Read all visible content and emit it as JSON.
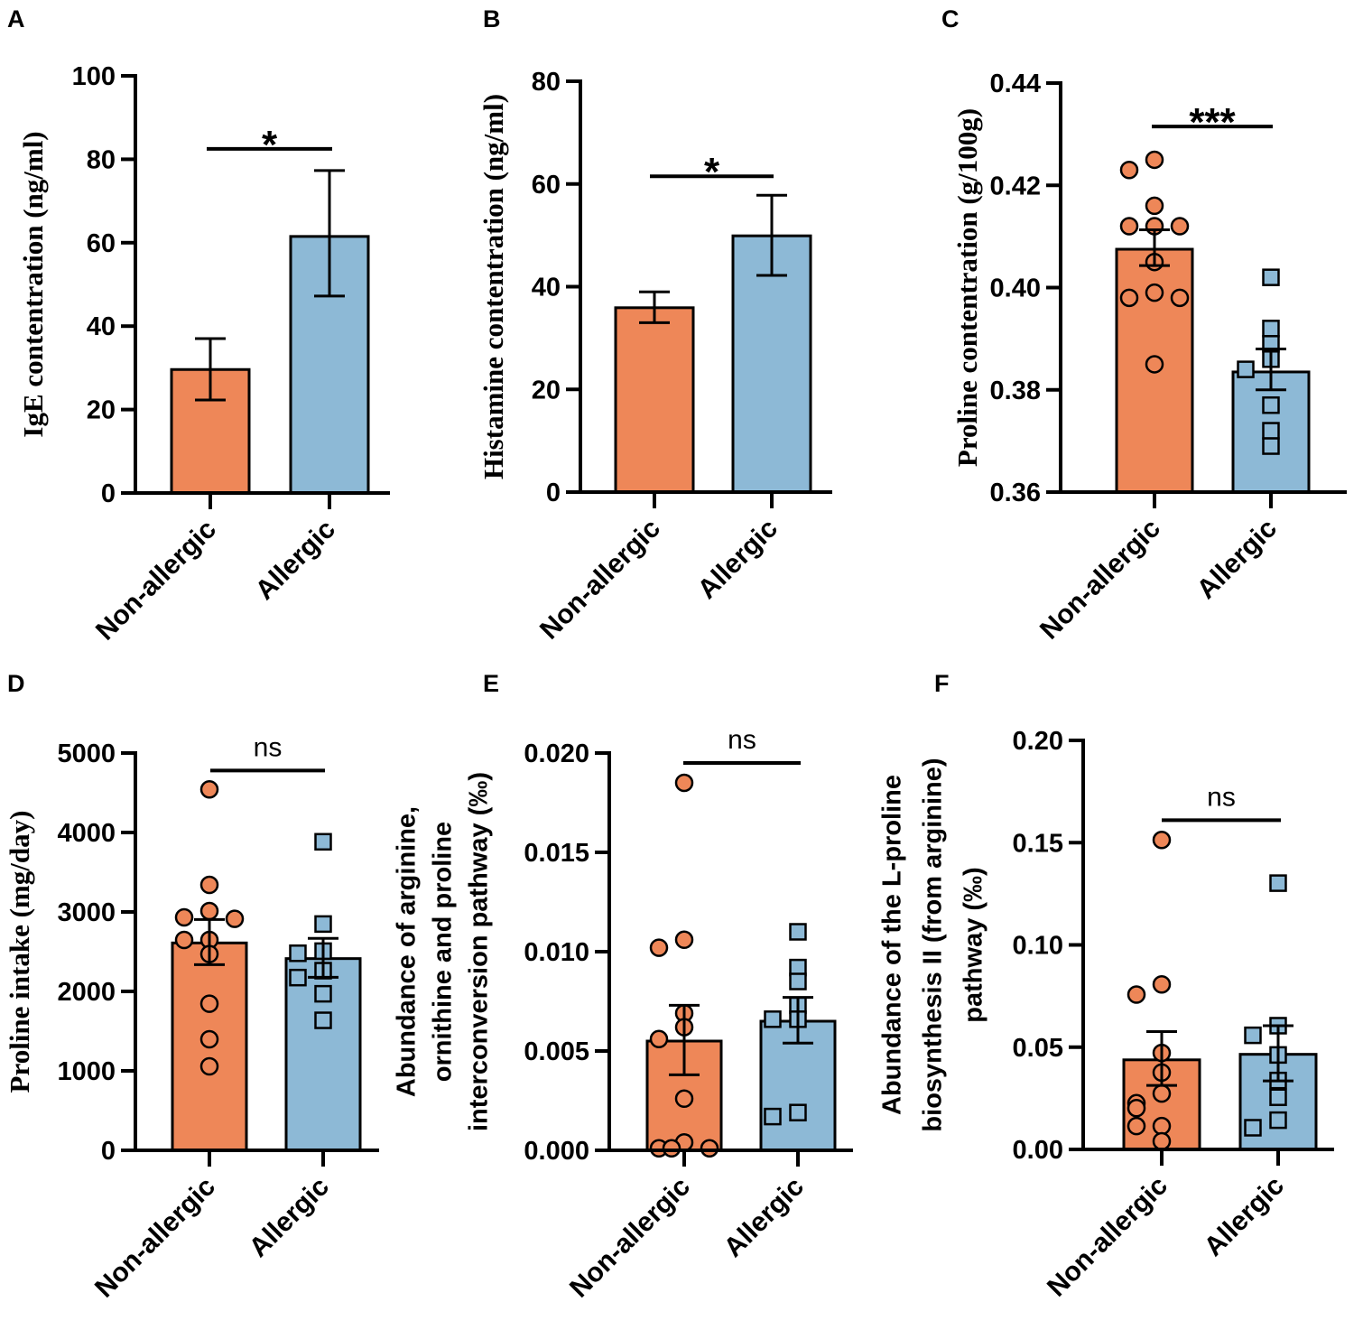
{
  "colors": {
    "non_allergic": "#EE8758",
    "allergic": "#8DB9D6",
    "stroke": "#000000"
  },
  "chart_data": [
    {
      "panel": "A",
      "type": "bar",
      "categories": [
        "Non-allergic",
        "Allergic"
      ],
      "ylabel": "IgE contentration (ng/ml)",
      "ylabel_lines": [
        "IgE contentration (ng/ml)"
      ],
      "ylim": [
        0,
        100
      ],
      "yticks": [
        "0",
        "20",
        "40",
        "60",
        "80",
        "100"
      ],
      "ytick_values": [
        0,
        20,
        40,
        60,
        80,
        100
      ],
      "means": [
        29.6,
        61.5
      ],
      "sem_low": [
        22.3,
        47.2
      ],
      "sem_high": [
        37.0,
        77.3
      ],
      "points": [
        [],
        []
      ],
      "significance": "*",
      "sig_y": 82.5
    },
    {
      "panel": "B",
      "type": "bar",
      "categories": [
        "Non-allergic",
        "Allergic"
      ],
      "ylabel": "Histamine contentration (ng/ml)",
      "ylabel_lines": [
        "Histamine contentration (ng/ml)"
      ],
      "ylim": [
        0,
        80
      ],
      "yticks": [
        "0",
        "20",
        "40",
        "60",
        "80"
      ],
      "ytick_values": [
        0,
        20,
        40,
        60,
        80
      ],
      "means": [
        35.9,
        49.9
      ],
      "sem_low": [
        33.0,
        42.2
      ],
      "sem_high": [
        39.0,
        57.8
      ],
      "points": [
        [],
        []
      ],
      "significance": "*",
      "sig_y": 61.5
    },
    {
      "panel": "C",
      "type": "bar",
      "categories": [
        "Non-allergic",
        "Allergic"
      ],
      "ylabel": "Proline contentration (g/100g)",
      "ylabel_lines": [
        "Proline contentration (g/100g)"
      ],
      "ylim": [
        0.36,
        0.44
      ],
      "yticks": [
        "0.36",
        "0.38",
        "0.40",
        "0.42",
        "0.44"
      ],
      "ytick_values": [
        0.36,
        0.38,
        0.4,
        0.42,
        0.44
      ],
      "means": [
        0.4075,
        0.3835
      ],
      "sem_low": [
        0.4043,
        0.38
      ],
      "sem_high": [
        0.4113,
        0.388
      ],
      "points": [
        [
          0.425,
          0.423,
          0.416,
          0.412,
          0.412,
          0.412,
          0.405,
          0.399,
          0.398,
          0.398,
          0.385
        ],
        [
          0.402,
          0.392,
          0.389,
          0.386,
          0.384,
          0.377,
          0.372,
          0.369
        ]
      ],
      "significance": "***",
      "sig_y": 0.4315
    },
    {
      "panel": "D",
      "type": "bar",
      "categories": [
        "Non-allergic",
        "Allergic"
      ],
      "ylabel": "Proline intake (mg/day)",
      "ylabel_lines": [
        "Proline intake (mg/day)"
      ],
      "ylim": [
        0,
        5000
      ],
      "yticks": [
        "0",
        "1000",
        "2000",
        "3000",
        "4000",
        "5000"
      ],
      "ytick_values": [
        0,
        1000,
        2000,
        3000,
        4000,
        5000
      ],
      "means": [
        2610,
        2413
      ],
      "sem_low": [
        2337,
        2178
      ],
      "sem_high": [
        2905,
        2667
      ],
      "points": [
        [
          4542,
          3341,
          3011,
          2932,
          2913,
          2648,
          2648,
          2470,
          1845,
          1398,
          1057
        ],
        [
          3883,
          2848,
          2507,
          2480,
          2261,
          2174,
          1970,
          1636
        ]
      ],
      "significance": "ns",
      "sig_y": 4780
    },
    {
      "panel": "E",
      "type": "bar",
      "categories": [
        "Non-allergic",
        "Allergic"
      ],
      "ylabel": "Abundance of arginine, ornithine and proline interconversion pathway (‰)",
      "ylabel_lines": [
        "Abundance of arginine,",
        "ornithine and proline",
        "interconversion pathway (‰)"
      ],
      "ylim": [
        0,
        0.02
      ],
      "yticks": [
        "0.000",
        "0.005",
        "0.010",
        "0.015",
        "0.020"
      ],
      "ytick_values": [
        0,
        0.005,
        0.01,
        0.015,
        0.02
      ],
      "means": [
        0.0055,
        0.0065
      ],
      "sem_low": [
        0.0038,
        0.0054
      ],
      "sem_high": [
        0.0073,
        0.0077
      ],
      "points": [
        [
          0.0185,
          0.0106,
          0.0102,
          0.0069,
          0.0062,
          0.0056,
          0.0026,
          0.0004,
          0.0001,
          0.0001,
          0.0001
        ],
        [
          0.011,
          0.0092,
          0.0085,
          0.0073,
          0.0066,
          0.0066,
          0.0019,
          0.0017
        ]
      ],
      "significance": "ns",
      "sig_y": 0.0195
    },
    {
      "panel": "F",
      "type": "bar",
      "categories": [
        "Non-allergic",
        "Allergic"
      ],
      "ylabel": "Abundance of the L-proline biosynthesis II (from arginine) pathway (‰)",
      "ylabel_lines": [
        "Abundance of the L-proline",
        "biosynthesis II (from arginine)",
        "pathway (‰)"
      ],
      "ylim": [
        0,
        0.2
      ],
      "yticks": [
        "0.00",
        "0.05",
        "0.10",
        "0.15",
        "0.20"
      ],
      "ytick_values": [
        0,
        0.05,
        0.1,
        0.15,
        0.2
      ],
      "means": [
        0.0438,
        0.0465
      ],
      "sem_low": [
        0.0313,
        0.0335
      ],
      "sem_high": [
        0.0576,
        0.0605
      ],
      "points": [
        [
          0.1513,
          0.0807,
          0.0757,
          0.0472,
          0.0376,
          0.0273,
          0.0226,
          0.0202,
          0.0114,
          0.0114,
          0.004
        ],
        [
          0.1302,
          0.0605,
          0.0558,
          0.0462,
          0.0337,
          0.0255,
          0.0143,
          0.0106
        ]
      ],
      "significance": "ns",
      "sig_y": 0.161
    }
  ]
}
